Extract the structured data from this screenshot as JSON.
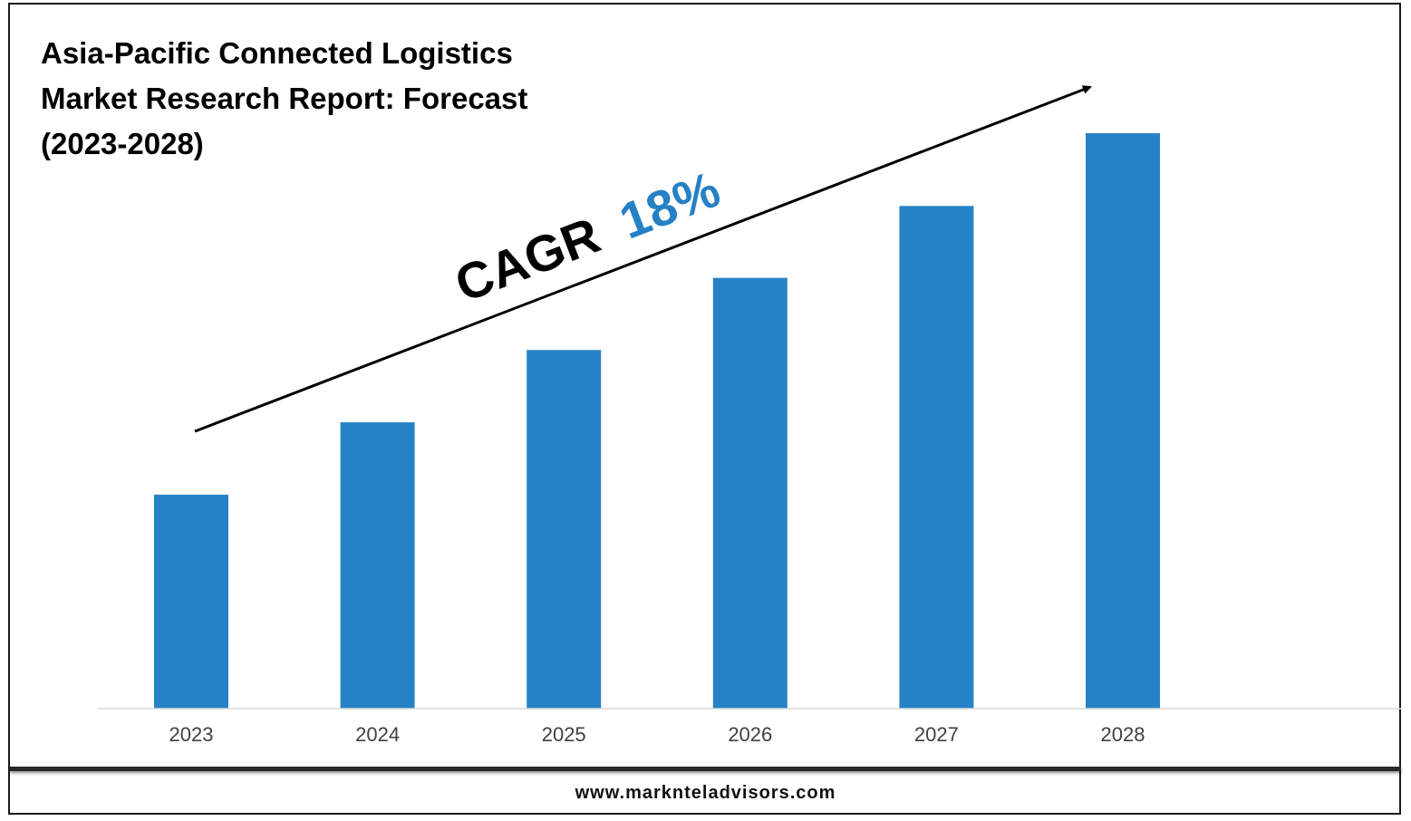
{
  "title_lines": [
    "Asia-Pacific Connected Logistics",
    "Market Research Report: Forecast",
    "(2023-2028)"
  ],
  "cagr": {
    "prefix": "CAGR",
    "value": "18%",
    "value_color": "#2680c5"
  },
  "footer": {
    "url": "www.marknteladvisors.com"
  },
  "chart_data": {
    "type": "bar",
    "title": "Asia-Pacific Connected Logistics Market Research Report: Forecast (2023-2028)",
    "categories": [
      "2023",
      "2024",
      "2025",
      "2026",
      "2027",
      "2028"
    ],
    "values": [
      1.0,
      1.338,
      1.676,
      2.013,
      2.349,
      2.689
    ],
    "value_axis_shown": false,
    "bar_color": "#2682c6",
    "grid": false,
    "annotation": "CAGR 18%"
  }
}
